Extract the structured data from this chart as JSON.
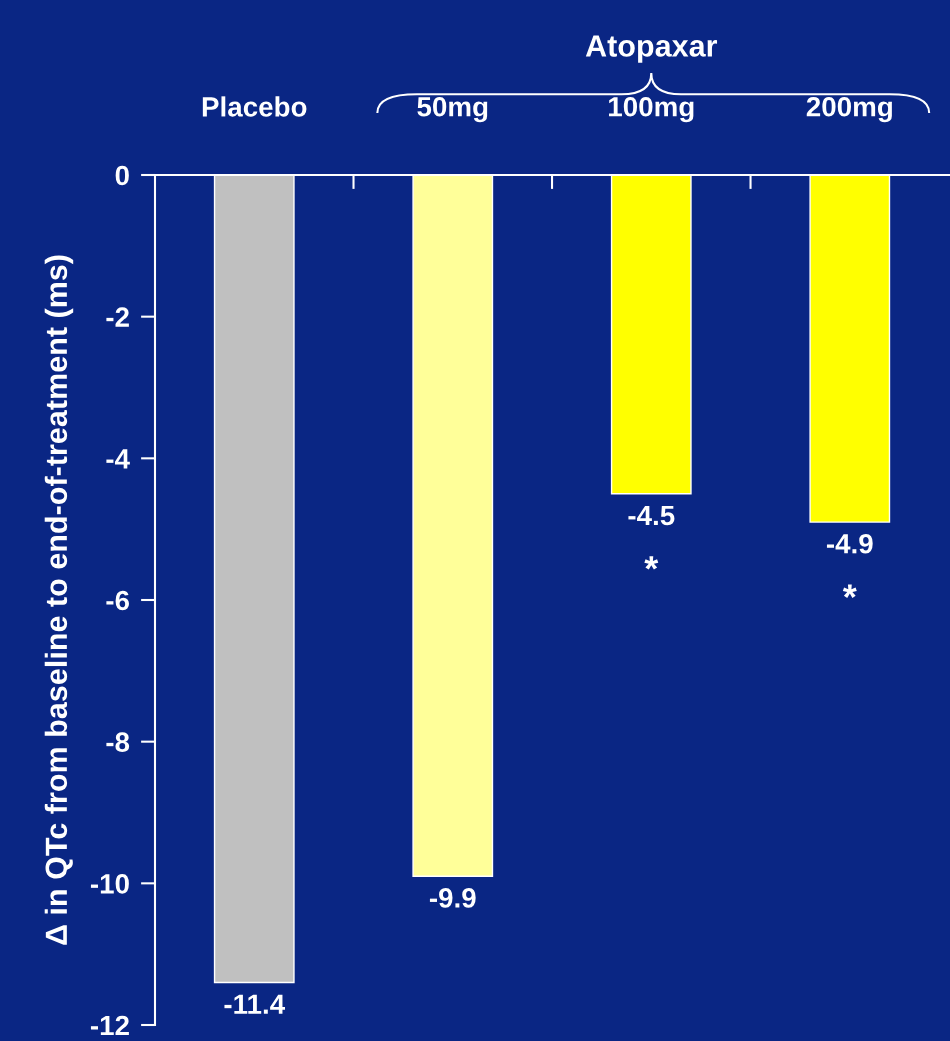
{
  "chart_data": {
    "type": "bar",
    "ylabel": "Δ in QTc from baseline to end-of-treatment (ms)",
    "categories": [
      "Placebo",
      "50mg",
      "100mg",
      "200mg"
    ],
    "values": [
      -11.4,
      -9.9,
      -4.5,
      -4.9
    ],
    "colors": [
      "#c0c0c0",
      "#ffff99",
      "#ffff00",
      "#ffff00"
    ],
    "ylim": [
      -12,
      0
    ],
    "yticks": [
      {
        "value": -12,
        "label": "-12"
      },
      {
        "value": -10,
        "label": "-10"
      },
      {
        "value": -8,
        "label": "-8"
      },
      {
        "value": -6,
        "label": "-6"
      },
      {
        "value": -4,
        "label": "-4"
      },
      {
        "value": -2,
        "label": "-2"
      },
      0
    ],
    "value_labels": [
      "-11.4",
      "-9.9",
      "-4.5",
      "-4.9"
    ],
    "annotations": [
      "Atopaxar",
      "*",
      "*"
    ],
    "grid": false,
    "legend": false
  }
}
